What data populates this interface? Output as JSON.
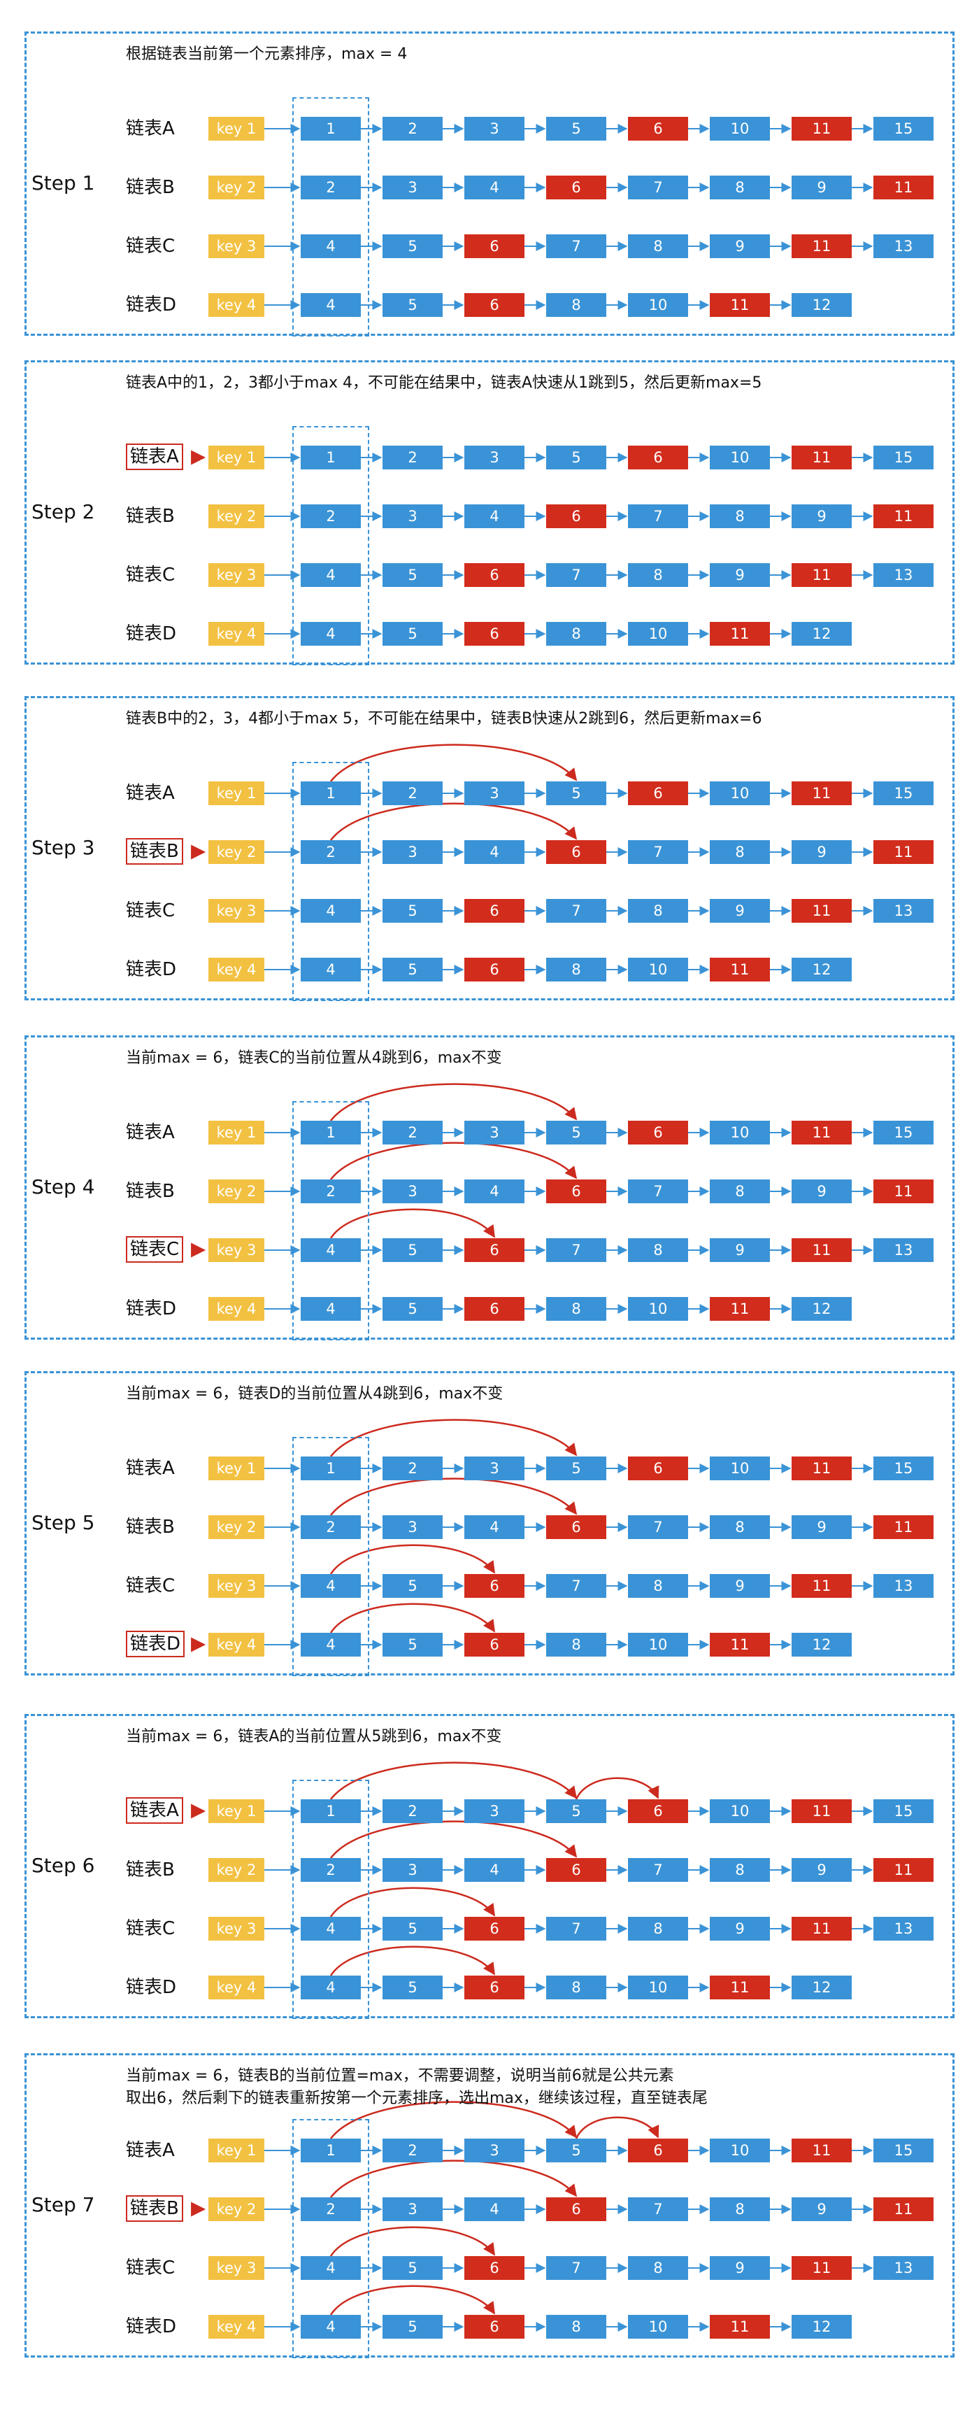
{
  "colors": {
    "key": "#f3c142",
    "node": "#3a93d6",
    "highlight": "#d22c1c",
    "border": "#3a93d6",
    "pointer": "#cc2a1e"
  },
  "lists": [
    {
      "label": "链表A",
      "key": "key 1",
      "values": [
        "1",
        "2",
        "3",
        "5",
        "6",
        "10",
        "11",
        "15"
      ],
      "red": [
        "6",
        "11"
      ]
    },
    {
      "label": "链表B",
      "key": "key 2",
      "values": [
        "2",
        "3",
        "4",
        "6",
        "7",
        "8",
        "9",
        "11"
      ],
      "red": [
        "6",
        "11"
      ]
    },
    {
      "label": "链表C",
      "key": "key 3",
      "values": [
        "4",
        "5",
        "6",
        "7",
        "8",
        "9",
        "11",
        "13"
      ],
      "red": [
        "6",
        "11"
      ]
    },
    {
      "label": "链表D",
      "key": "key 4",
      "values": [
        "4",
        "5",
        "6",
        "8",
        "10",
        "11",
        "12"
      ],
      "red": [
        "6",
        "11"
      ]
    }
  ],
  "steps": [
    {
      "label": "Step 1",
      "notes": [
        "根据链表当前第一个元素排序，max = 4"
      ],
      "highlight": null,
      "jumps": []
    },
    {
      "label": "Step 2",
      "notes": [
        "链表A中的1，2，3都小于max 4，不可能在结果中，链表A快速从1跳到5，然后更新max=5"
      ],
      "highlight": 0,
      "jumps": []
    },
    {
      "label": "Step 3",
      "notes": [
        "链表B中的2，3，4都小于max 5，不可能在结果中，链表B快速从2跳到6，然后更新max=6"
      ],
      "highlight": 1,
      "jumps": [
        [
          0,
          0,
          3
        ],
        [
          1,
          0,
          3
        ]
      ]
    },
    {
      "label": "Step 4",
      "notes": [
        "当前max = 6，链表C的当前位置从4跳到6，max不变"
      ],
      "highlight": 2,
      "jumps": [
        [
          0,
          0,
          3
        ],
        [
          1,
          0,
          3
        ],
        [
          2,
          0,
          2
        ]
      ]
    },
    {
      "label": "Step 5",
      "notes": [
        "当前max = 6，链表D的当前位置从4跳到6，max不变"
      ],
      "highlight": 3,
      "jumps": [
        [
          0,
          0,
          3
        ],
        [
          1,
          0,
          3
        ],
        [
          2,
          0,
          2
        ],
        [
          3,
          0,
          2
        ]
      ]
    },
    {
      "label": "Step 6",
      "notes": [
        "当前max = 6，链表A的当前位置从5跳到6，max不变"
      ],
      "highlight": 0,
      "jumps": [
        [
          0,
          0,
          3
        ],
        [
          0,
          3,
          4
        ],
        [
          1,
          0,
          3
        ],
        [
          2,
          0,
          2
        ],
        [
          3,
          0,
          2
        ]
      ]
    },
    {
      "label": "Step 7",
      "notes": [
        "当前max = 6，链表B的当前位置=max，不需要调整，说明当前6就是公共元素",
        "取出6，然后剩下的链表重新按第一个元素排序，选出max，继续该过程，直至链表尾"
      ],
      "highlight": 1,
      "jumps": [
        [
          0,
          0,
          3
        ],
        [
          0,
          3,
          4
        ],
        [
          1,
          0,
          3
        ],
        [
          2,
          0,
          2
        ],
        [
          3,
          0,
          2
        ]
      ]
    }
  ]
}
